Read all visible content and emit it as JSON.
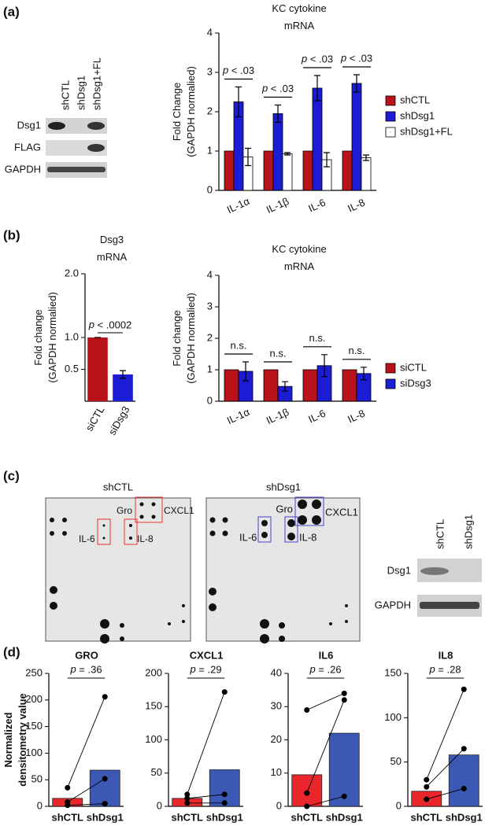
{
  "panel_labels": [
    "(a)",
    "(b)",
    "(c)",
    "(d)"
  ],
  "blot_a": {
    "lanes": [
      "shCTL",
      "shDsg1",
      "shDsg1+FL"
    ],
    "rows": [
      "Dsg1",
      "FLAG",
      "GAPDH"
    ]
  },
  "dot_blots": [
    {
      "title": "shCTL",
      "labels": [
        "Gro",
        "CXCL1",
        "IL-6",
        "IL-8"
      ]
    },
    {
      "title": "shDsg1",
      "labels": [
        "Gro",
        "CXCL1",
        "IL-6",
        "IL-8"
      ]
    }
  ],
  "blot_c": {
    "lanes": [
      "shCTL",
      "shDsg1"
    ],
    "rows": [
      "Dsg1",
      "GAPDH"
    ]
  },
  "chart_data": [
    {
      "type": "bar",
      "title": "KC cytokine mRNA",
      "ylabel": "Fold Change (GAPDH normalied)",
      "categories": [
        "IL-1α",
        "IL-1β",
        "IL-6",
        "IL-8"
      ],
      "series": [
        {
          "name": "shCTL",
          "color": "#b8121b",
          "values": [
            1,
            1,
            1,
            1
          ]
        },
        {
          "name": "shDsg1",
          "color": "#1c1cd4",
          "values": [
            2.25,
            1.95,
            2.6,
            2.72
          ],
          "errors": [
            0.38,
            0.22,
            0.32,
            0.22
          ]
        },
        {
          "name": "shDsg1+FL",
          "color": "#ffffff",
          "values": [
            0.85,
            0.93,
            0.78,
            0.83
          ],
          "errors": [
            0.22,
            0.03,
            0.18,
            0.07
          ]
        }
      ],
      "annotations": [
        "p < .03",
        "p < .03",
        "p < .03",
        "p < .03"
      ],
      "ylim": [
        0,
        4
      ],
      "yticks": [
        0,
        1,
        2,
        3,
        4
      ]
    },
    {
      "type": "bar",
      "title": "Dsg3 mRNA",
      "ylabel": "Fold change (GAPDH normalied)",
      "categories": [
        "siCTL",
        "siDsg3"
      ],
      "values": [
        1,
        0.42
      ],
      "errors": [
        0,
        0.06
      ],
      "colors": [
        "#b8121b",
        "#1c1cd4"
      ],
      "annotation": "p < .0002",
      "ylim": [
        0,
        2
      ],
      "yticks": [
        0.5,
        {
          "value": 1,
          "label": "1.0"
        },
        {
          "value": 2,
          "label": "2.0"
        }
      ]
    },
    {
      "type": "bar",
      "title": "KC cytokine mRNA",
      "ylabel": "Fold change (GAPDH normalied)",
      "categories": [
        "IL-1α",
        "IL-1β",
        "IL-6",
        "IL-8"
      ],
      "series": [
        {
          "name": "siCTL",
          "color": "#b8121b",
          "values": [
            1,
            1,
            1,
            1
          ]
        },
        {
          "name": "siDsg3",
          "color": "#1c1cd4",
          "values": [
            0.95,
            0.47,
            1.13,
            0.88
          ],
          "errors": [
            0.3,
            0.15,
            0.35,
            0.2
          ]
        }
      ],
      "annotations": [
        "n.s.",
        "n.s.",
        "n.s.",
        "n.s."
      ],
      "ylim": [
        0,
        4
      ],
      "yticks": [
        0,
        1,
        2,
        3,
        4
      ]
    },
    {
      "type": "bar-dot",
      "title": "GRO",
      "ylabel": "Normalized densitometry value",
      "categories": [
        "shCTL",
        "shDsg1"
      ],
      "values": [
        15,
        68
      ],
      "points": [
        [
          2,
          8,
          35
        ],
        [
          5,
          52,
          206
        ]
      ],
      "colors": [
        "#e8262b",
        "#3b58b5"
      ],
      "annotation": "p = .36",
      "ylim": [
        0,
        250
      ],
      "yticks": [
        0,
        50,
        100,
        150,
        200,
        250
      ]
    },
    {
      "type": "bar-dot",
      "title": "CXCL1",
      "categories": [
        "shCTL",
        "shDsg1"
      ],
      "values": [
        12,
        55
      ],
      "points": [
        [
          5,
          12,
          18
        ],
        [
          5,
          18,
          172
        ]
      ],
      "colors": [
        "#e8262b",
        "#3b58b5"
      ],
      "annotation": "p = .29",
      "ylim": [
        0,
        200
      ],
      "yticks": [
        0,
        50,
        100,
        150,
        200
      ]
    },
    {
      "type": "bar-dot",
      "title": "IL6",
      "categories": [
        "shCTL",
        "shDsg1"
      ],
      "values": [
        9.5,
        22
      ],
      "points": [
        [
          0,
          4,
          29
        ],
        [
          3,
          32,
          34
        ]
      ],
      "colors": [
        "#e8262b",
        "#3b58b5"
      ],
      "annotation": "p = .26",
      "ylim": [
        0,
        40
      ],
      "yticks": [
        0,
        10,
        20,
        30,
        40
      ]
    },
    {
      "type": "bar-dot",
      "title": "IL8",
      "categories": [
        "shCTL",
        "shDsg1"
      ],
      "values": [
        17,
        58
      ],
      "points": [
        [
          8,
          22,
          30
        ],
        [
          20,
          65,
          132
        ]
      ],
      "colors": [
        "#e8262b",
        "#3b58b5"
      ],
      "annotation": "p = .28",
      "ylim": [
        0,
        150
      ],
      "yticks": [
        0,
        50,
        100,
        150
      ]
    }
  ]
}
